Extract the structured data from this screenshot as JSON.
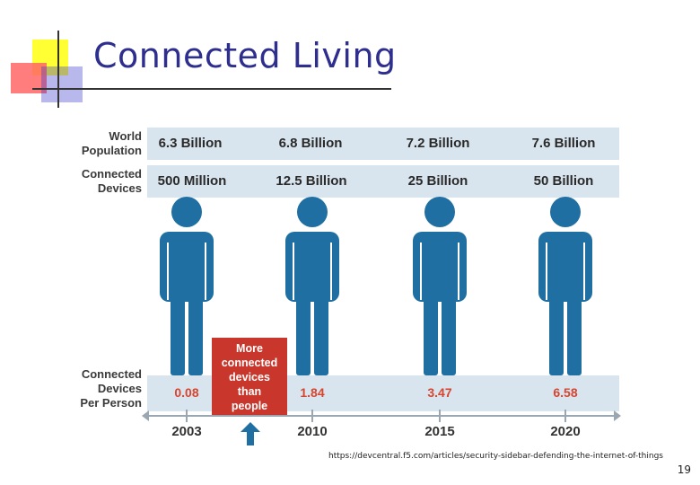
{
  "title": "Connected Living",
  "row_labels": {
    "world_population": "World\nPopulation",
    "connected_devices": "Connected\nDevices",
    "devices_per_person": "Connected\nDevices\nPer Person"
  },
  "columns": [
    {
      "year": "2003",
      "population": "6.3 Billion",
      "devices": "500 Million",
      "ratio": "0.08"
    },
    {
      "year": "2010",
      "population": "6.8 Billion",
      "devices": "12.5 Billion",
      "ratio": "1.84"
    },
    {
      "year": "2015",
      "population": "7.2 Billion",
      "devices": "25 Billion",
      "ratio": "3.47"
    },
    {
      "year": "2020",
      "population": "7.6 Billion",
      "devices": "50 Billion",
      "ratio": "6.58"
    }
  ],
  "callout": "More\nconnected\ndevices\nthan\npeople",
  "source_url": "https://devcentral.f5.com/articles/security-sidebar-defending-the-internet-of-things",
  "page_number": "19",
  "colors": {
    "title": "#2e2e8f",
    "person": "#1f6fa2",
    "band": "#d8e4ee",
    "callout": "#c9372c",
    "ratio": "#d8452e",
    "arrow": "#1f6fa2"
  }
}
